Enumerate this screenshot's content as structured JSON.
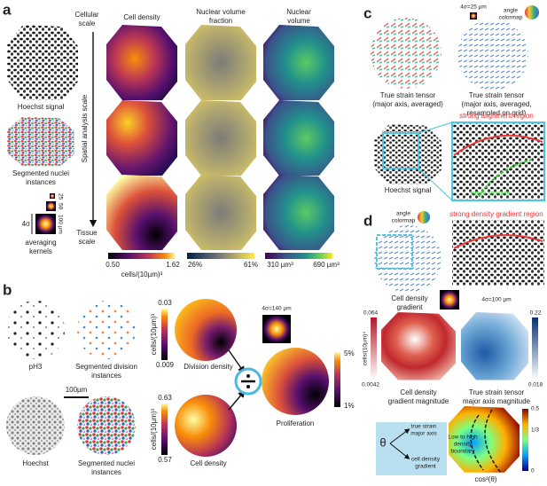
{
  "panel_a": {
    "label": "a",
    "hoechst": "Hoechst signal",
    "segmented": [
      "Segmented nuclei",
      "instances"
    ],
    "cellular": [
      "Cellular",
      "scale"
    ],
    "tissue": [
      "Tissue",
      "scale"
    ],
    "axis": "Spatial analysis scale",
    "columns": [
      [
        "Cell density"
      ],
      [
        "Nuclear volume",
        "fraction"
      ],
      [
        "Nuclear",
        "volume"
      ]
    ],
    "kernel_sizes": [
      "25",
      "50",
      "100 µm"
    ],
    "sigma": "4σ",
    "kernels": [
      "averaging",
      "kernels"
    ],
    "colorbars": [
      {
        "min": "0.50",
        "max": "1.62",
        "unit": "cells/(10µm)³"
      },
      {
        "min": "26%",
        "max": "61%"
      },
      {
        "min": "310 µm³",
        "max": "690 µm³"
      }
    ]
  },
  "panel_b": {
    "label": "b",
    "ph3": "pH3",
    "seg_div": [
      "Segmented division",
      "instances"
    ],
    "hoechst": "Hoechst",
    "scale": "100µm",
    "seg_nuc": [
      "Segmented nuclei",
      "instances"
    ],
    "div_bar": {
      "max": "0.03",
      "min": "0.009",
      "unit": "cells/(10µm)³"
    },
    "div": "Division density",
    "cell_bar": {
      "max": "0.63",
      "min": "0.57",
      "unit": "cells/(10µm)³"
    },
    "cell": "Cell density",
    "kernel": "4σ=140 µm",
    "prolif_bar": {
      "max": "5%",
      "min": "1%"
    },
    "prolif": "Proliferation"
  },
  "panel_c": {
    "label": "c",
    "kernel": "4σ=25 µm",
    "colormap": [
      "angle",
      "colormap"
    ],
    "strain1": [
      "True strain tensor",
      "(major axis, averaged)"
    ],
    "strain2": [
      "True strain tensor",
      "(major axis, averaged,",
      "resampled on grid)"
    ],
    "region": "strong alignment region",
    "hoechst": "Hoechst signal",
    "lumen": "lumen structure"
  },
  "panel_d": {
    "label": "d",
    "colormap": [
      "angle",
      "colormap"
    ],
    "region": "strong density gradient region",
    "gradient": [
      "Cell density",
      "gradient"
    ],
    "kernel": "4σ=100 µm",
    "red_bar": {
      "max": "0.064",
      "min": "0.0042",
      "unit": "cells/(10µm)⁴"
    },
    "blue_bar": {
      "max": "0.22",
      "min": "0.018"
    },
    "red_label": [
      "Cell density",
      "gradient magnitude"
    ],
    "blue_label": [
      "True strain tensor",
      "major axis magnitude"
    ],
    "theta": "θ",
    "strain_axis": [
      "true strain",
      "major axis"
    ],
    "grad_axis": [
      "cell density",
      "gradient"
    ],
    "boundary": [
      "Low to high",
      "density",
      "boundary"
    ],
    "cos_bar": {
      "max": "0.5",
      "mid": "1/3",
      "min": "0"
    },
    "cos": "cos²(θ)"
  }
}
